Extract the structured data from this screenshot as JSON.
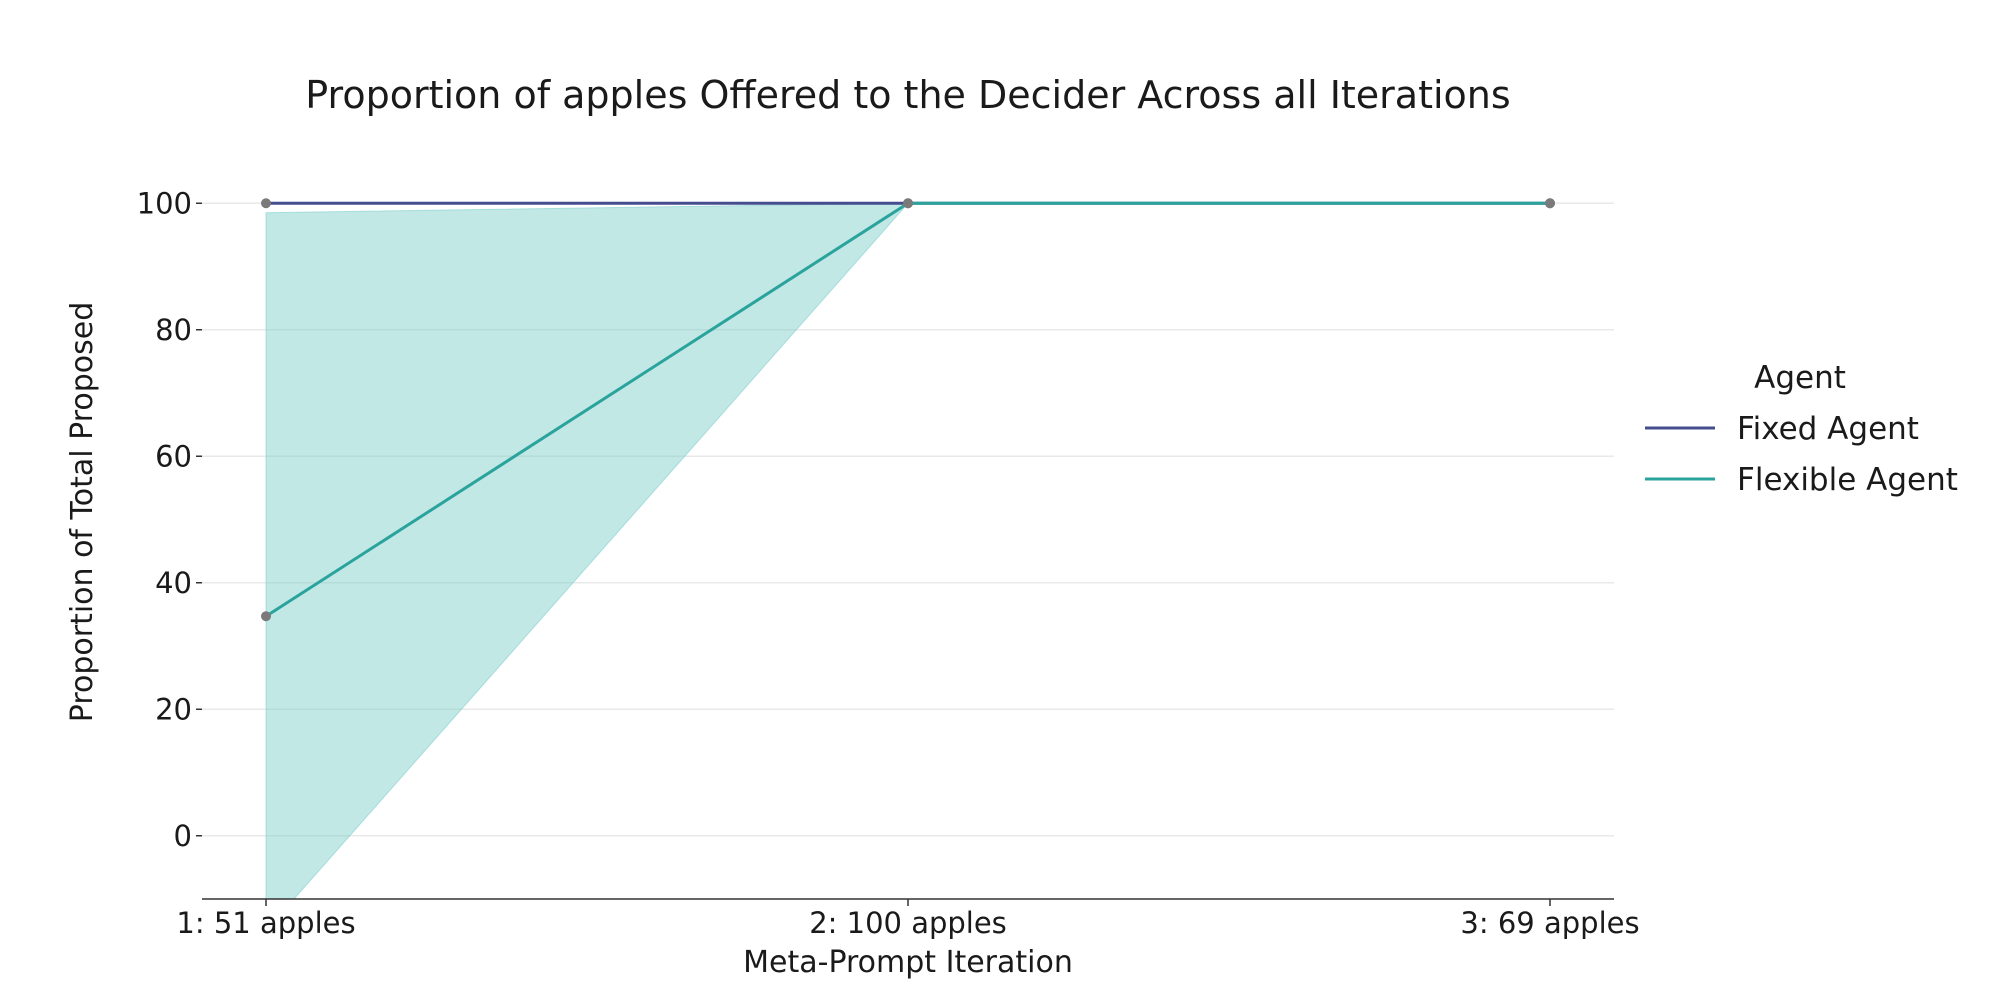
{
  "chart_data": {
    "type": "line",
    "title": "Proportion of apples Offered to the Decider Across all Iterations",
    "xlabel": "Meta-Prompt Iteration",
    "ylabel": "Proportion of Total Proposed",
    "categories": [
      "1: 51 apples",
      "2: 100 apples",
      "3: 69 apples"
    ],
    "yticks": [
      0,
      20,
      40,
      60,
      80,
      100
    ],
    "ylim": [
      -10,
      110
    ],
    "grid": true,
    "legend": {
      "title": "Agent",
      "placement": "right"
    },
    "series": [
      {
        "name": "Fixed Agent",
        "color": "#464d8f",
        "values": [
          100,
          100,
          100
        ]
      },
      {
        "name": "Flexible Agent",
        "color": "#2aa39d",
        "band_color": "#7fcfcb",
        "values": [
          34.7,
          100,
          100
        ],
        "ci_lower": [
          -15,
          100,
          100
        ],
        "ci_upper": [
          98.5,
          100,
          100
        ]
      }
    ],
    "marker_color": "#7a7a7a"
  }
}
